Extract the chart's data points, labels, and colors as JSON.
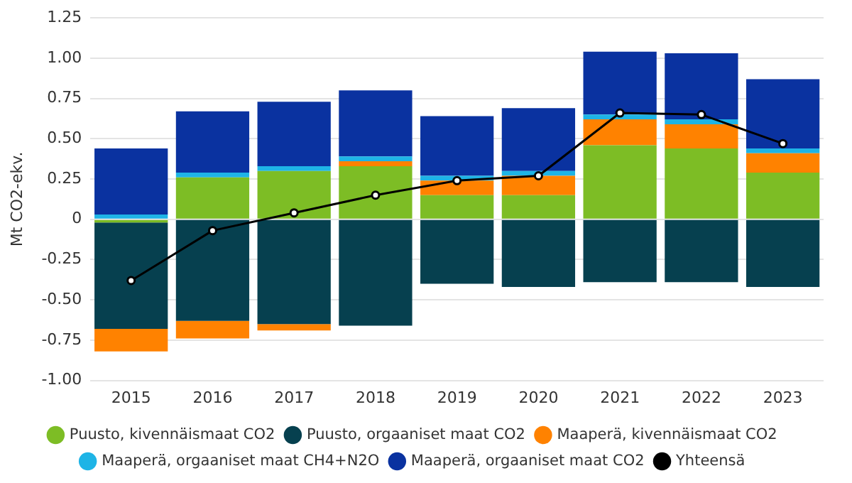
{
  "chart_data": {
    "type": "bar",
    "stacked": true,
    "ylabel": "Mt CO2-ekv.",
    "categories": [
      "2015",
      "2016",
      "2017",
      "2018",
      "2019",
      "2020",
      "2021",
      "2022",
      "2023"
    ],
    "series": [
      {
        "name": "Puusto, kivennäismaat CO2",
        "color": "#7dbd25",
        "values": [
          -0.02,
          0.26,
          0.3,
          0.33,
          0.15,
          0.15,
          0.46,
          0.44,
          0.29
        ]
      },
      {
        "name": "Puusto, orgaaniset maat CO2",
        "color": "#06404f",
        "values": [
          -0.66,
          -0.63,
          -0.65,
          -0.66,
          -0.4,
          -0.42,
          -0.39,
          -0.39,
          -0.42
        ]
      },
      {
        "name": "Maaperä, kivennäismaat CO2",
        "color": "#ff8200",
        "values": [
          -0.14,
          -0.11,
          -0.04,
          0.03,
          0.09,
          0.12,
          0.16,
          0.15,
          0.12
        ]
      },
      {
        "name": "Maaperä, orgaaniset maat CH4+N2O",
        "color": "#1eb4e6",
        "values": [
          0.03,
          0.03,
          0.03,
          0.03,
          0.03,
          0.03,
          0.03,
          0.03,
          0.03
        ]
      },
      {
        "name": "Maaperä, orgaaniset maat CO2",
        "color": "#0a32a0",
        "values": [
          0.41,
          0.38,
          0.4,
          0.41,
          0.37,
          0.39,
          0.39,
          0.41,
          0.43
        ]
      },
      {
        "name": "Yhteensä",
        "color": "#000000",
        "type": "line",
        "values": [
          -0.38,
          -0.07,
          0.04,
          0.15,
          0.24,
          0.27,
          0.66,
          0.65,
          0.47
        ]
      }
    ],
    "ylim": [
      -1,
      1.25
    ],
    "yticks": [
      {
        "value": -1,
        "label": "-1.00"
      },
      {
        "value": -0.75,
        "label": "-0.75"
      },
      {
        "value": -0.5,
        "label": "-0.50"
      },
      {
        "value": -0.25,
        "label": "-0.25"
      },
      0,
      {
        "value": 0.25,
        "label": "0.25"
      },
      {
        "value": 0.5,
        "label": "0.50"
      },
      {
        "value": 0.75,
        "label": "0.75"
      },
      {
        "value": 1,
        "label": "1.00"
      },
      {
        "value": 1.25,
        "label": "1.25"
      }
    ],
    "grid": "y",
    "legend": "bottom",
    "marker": "circle",
    "line_style": "solid"
  }
}
